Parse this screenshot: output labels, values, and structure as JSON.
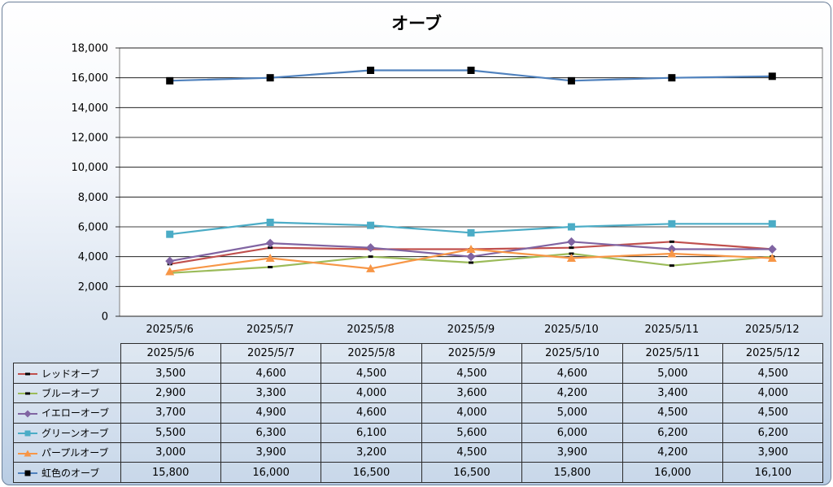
{
  "chart_data": {
    "type": "line",
    "title": "オーブ",
    "categories": [
      "2025/5/6",
      "2025/5/7",
      "2025/5/8",
      "2025/5/9",
      "2025/5/10",
      "2025/5/11",
      "2025/5/12"
    ],
    "ylim": [
      0,
      18000
    ],
    "yticks": [
      "0",
      "2,000",
      "4,000",
      "6,000",
      "8,000",
      "10,000",
      "12,000",
      "14,000",
      "16,000",
      "18,000"
    ],
    "grid": true,
    "legend": "data-table",
    "series": [
      {
        "name": "レッドオーブ",
        "color": "#c0504d",
        "marker": "dash",
        "values": [
          3500,
          4600,
          4500,
          4500,
          4600,
          5000,
          4500
        ],
        "labels": [
          "3,500",
          "4,600",
          "4,500",
          "4,500",
          "4,600",
          "5,000",
          "4,500"
        ]
      },
      {
        "name": "ブルーオーブ",
        "color": "#9bbb59",
        "marker": "dash",
        "values": [
          2900,
          3300,
          4000,
          3600,
          4200,
          3400,
          4000
        ],
        "labels": [
          "2,900",
          "3,300",
          "4,000",
          "3,600",
          "4,200",
          "3,400",
          "4,000"
        ]
      },
      {
        "name": "イエローオーブ",
        "color": "#8064a2",
        "marker": "diamond",
        "values": [
          3700,
          4900,
          4600,
          4000,
          5000,
          4500,
          4500
        ],
        "labels": [
          "3,700",
          "4,900",
          "4,600",
          "4,000",
          "5,000",
          "4,500",
          "4,500"
        ]
      },
      {
        "name": "グリーンオーブ",
        "color": "#4bacc6",
        "marker": "square",
        "values": [
          5500,
          6300,
          6100,
          5600,
          6000,
          6200,
          6200
        ],
        "labels": [
          "5,500",
          "6,300",
          "6,100",
          "5,600",
          "6,000",
          "6,200",
          "6,200"
        ]
      },
      {
        "name": "パープルオーブ",
        "color": "#f79646",
        "marker": "triangle",
        "values": [
          3000,
          3900,
          3200,
          4500,
          3900,
          4200,
          3900
        ],
        "labels": [
          "3,000",
          "3,900",
          "3,200",
          "4,500",
          "3,900",
          "4,200",
          "3,900"
        ]
      },
      {
        "name": "虹色のオーブ",
        "color": "#4f81bd",
        "marker": "blacksquare",
        "values": [
          15800,
          16000,
          16500,
          16500,
          15800,
          16000,
          16100
        ],
        "labels": [
          "15,800",
          "16,000",
          "16,500",
          "16,500",
          "15,800",
          "16,000",
          "16,100"
        ]
      }
    ]
  }
}
